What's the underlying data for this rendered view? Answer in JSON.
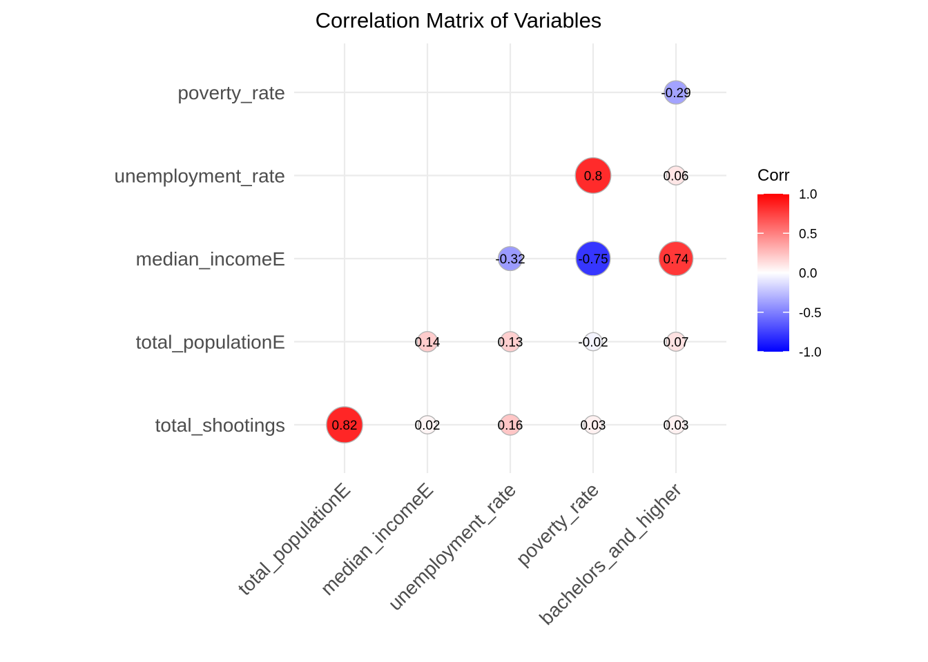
{
  "chart_data": {
    "type": "heatmap",
    "title": "Correlation Matrix of Variables",
    "x_categories": [
      "total_populationE",
      "median_incomeE",
      "unemployment_rate",
      "poverty_rate",
      "bachelors_and_higher"
    ],
    "y_categories": [
      "total_shootings",
      "total_populationE",
      "median_incomeE",
      "unemployment_rate",
      "poverty_rate"
    ],
    "cells": [
      {
        "x": "total_populationE",
        "y": "total_shootings",
        "value": 0.82,
        "label": "0.82"
      },
      {
        "x": "median_incomeE",
        "y": "total_shootings",
        "value": 0.02,
        "label": "0.02"
      },
      {
        "x": "unemployment_rate",
        "y": "total_shootings",
        "value": 0.16,
        "label": "0.16"
      },
      {
        "x": "poverty_rate",
        "y": "total_shootings",
        "value": 0.03,
        "label": "0.03"
      },
      {
        "x": "bachelors_and_higher",
        "y": "total_shootings",
        "value": 0.03,
        "label": "0.03"
      },
      {
        "x": "median_incomeE",
        "y": "total_populationE",
        "value": 0.14,
        "label": "0.14"
      },
      {
        "x": "unemployment_rate",
        "y": "total_populationE",
        "value": 0.13,
        "label": "0.13"
      },
      {
        "x": "poverty_rate",
        "y": "total_populationE",
        "value": -0.02,
        "label": "-0.02"
      },
      {
        "x": "bachelors_and_higher",
        "y": "total_populationE",
        "value": 0.07,
        "label": "0.07"
      },
      {
        "x": "unemployment_rate",
        "y": "median_incomeE",
        "value": -0.32,
        "label": "-0.32"
      },
      {
        "x": "poverty_rate",
        "y": "median_incomeE",
        "value": -0.75,
        "label": "-0.75"
      },
      {
        "x": "bachelors_and_higher",
        "y": "median_incomeE",
        "value": 0.74,
        "label": "0.74"
      },
      {
        "x": "poverty_rate",
        "y": "unemployment_rate",
        "value": 0.8,
        "label": "0.8"
      },
      {
        "x": "bachelors_and_higher",
        "y": "unemployment_rate",
        "value": 0.06,
        "label": "0.06"
      },
      {
        "x": "bachelors_and_higher",
        "y": "poverty_rate",
        "value": -0.29,
        "label": "-0.29"
      }
    ],
    "legend": {
      "title": "Corr",
      "ticks": [
        "1.0",
        "0.5",
        "0.0",
        "-0.5",
        "-1.0"
      ],
      "range": [
        -1,
        1
      ],
      "low_color": "#0000ff",
      "mid_color": "#ffffff",
      "high_color": "#ff0000",
      "placement": "right"
    },
    "grid": true,
    "point_outline_color": "#b3b3b3"
  }
}
